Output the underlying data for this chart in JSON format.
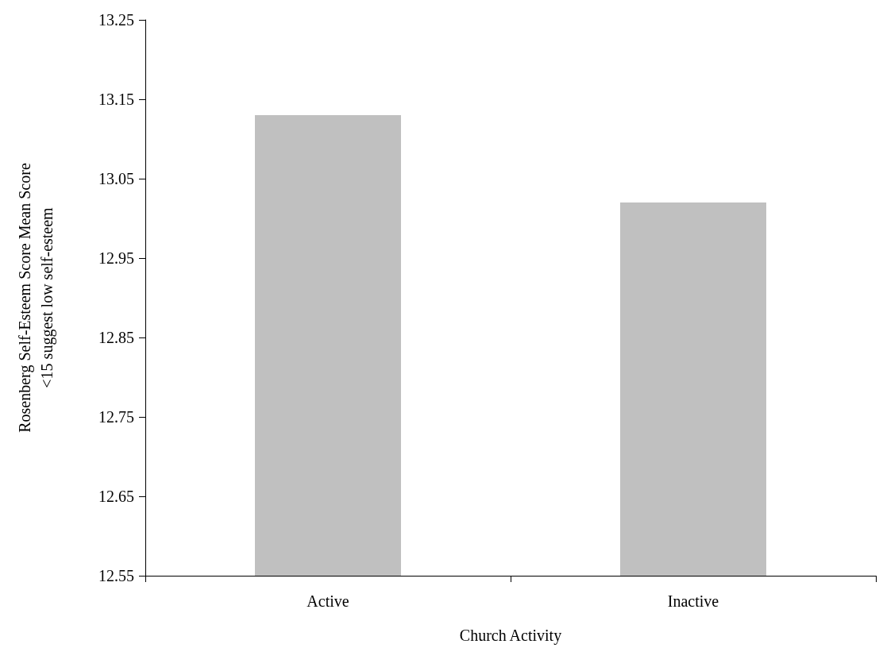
{
  "chart_data": {
    "type": "bar",
    "xlabel": "Church Activity",
    "ylabel": "Rosenberg Self-Esteem Score Mean Score\n<15 suggest low self-esteem",
    "categories": [
      "Active",
      "Inactive"
    ],
    "values": [
      13.13,
      13.02
    ],
    "color": "#c0c0c0",
    "ylim": [
      12.55,
      13.25
    ],
    "yticks": [
      12.55,
      12.65,
      12.75,
      12.85,
      12.95,
      13.05,
      13.15,
      13.25
    ]
  }
}
